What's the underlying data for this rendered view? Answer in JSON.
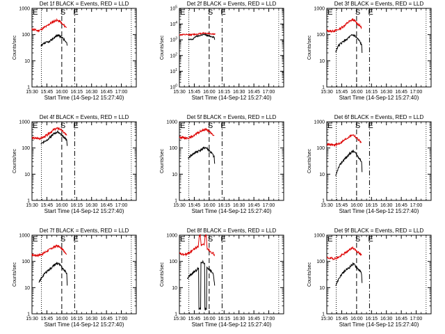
{
  "chart_data": {
    "type": "line",
    "xlabel": "Start Time (14-Sep-12 15:27:40)",
    "ylabel": "Counts/sec",
    "x_tick_labels": [
      "15:30",
      "15:45",
      "16:00",
      "16:15",
      "16:30",
      "16:45",
      "17:00"
    ],
    "x_ticks_min": [
      0,
      15,
      30,
      45,
      60,
      75,
      90
    ],
    "xlim_min": [
      0,
      105
    ],
    "ylim": [
      1,
      1000
    ],
    "y_tick_labels": [
      "1",
      "10",
      "100",
      "1000"
    ],
    "marker_labels": [
      "E",
      "S",
      "E"
    ],
    "series_colors": {
      "events": "#000000",
      "lld": "#dd0000"
    },
    "panels": [
      {
        "title": "Det 1f BLACK = Events, RED = LLD",
        "markers": [
          0.8,
          9.5,
          30.0,
          43.0
        ],
        "events": [
          [
            9,
            35
          ],
          [
            12,
            45
          ],
          [
            15,
            50
          ],
          [
            18,
            55
          ],
          [
            21,
            70
          ],
          [
            24,
            85
          ],
          [
            26,
            95
          ],
          [
            28,
            85
          ],
          [
            30,
            80
          ],
          [
            33,
            60
          ],
          [
            35,
            45
          ],
          [
            35.5,
            38
          ]
        ],
        "lld": [
          [
            0,
            160
          ],
          [
            3,
            150
          ],
          [
            6,
            140
          ],
          [
            9,
            155
          ],
          [
            12,
            185
          ],
          [
            15,
            210
          ],
          [
            18,
            260
          ],
          [
            21,
            300
          ],
          [
            24,
            350
          ],
          [
            26,
            340
          ],
          [
            28,
            320
          ],
          [
            30,
            260
          ],
          [
            33,
            210
          ],
          [
            35,
            190
          ]
        ]
      },
      {
        "title": "Det 2f BLACK = Events, RED = LLD",
        "markers": [
          0.8,
          9.5,
          30.0,
          43.0
        ],
        "ylim": [
          1,
          100000
        ],
        "y_tick_labels": [
          "10^0",
          "10^1",
          "10^2",
          "10^3",
          "10^4",
          "10^5"
        ],
        "events": [
          [
            9,
            1000
          ],
          [
            14,
            1100
          ],
          [
            16,
            1600
          ],
          [
            20,
            1800
          ],
          [
            24,
            2200
          ],
          [
            27,
            2000
          ],
          [
            30,
            1700
          ],
          [
            33,
            1600
          ],
          [
            35,
            1500
          ],
          [
            35.5,
            1000
          ]
        ],
        "lld": [
          [
            0,
            2100
          ],
          [
            8,
            2100
          ],
          [
            10,
            2100
          ],
          [
            15,
            2200
          ],
          [
            20,
            2400
          ],
          [
            24,
            2700
          ],
          [
            27,
            2600
          ],
          [
            30,
            2500
          ],
          [
            35,
            2300
          ],
          [
            36,
            2200
          ]
        ]
      },
      {
        "title": "Det 3f BLACK = Events, RED = LLD",
        "markers": [
          0.8,
          9.5,
          30.0,
          43.0
        ],
        "events": [
          [
            9,
            22
          ],
          [
            11,
            35
          ],
          [
            14,
            45
          ],
          [
            17,
            55
          ],
          [
            20,
            65
          ],
          [
            23,
            80
          ],
          [
            26,
            95
          ],
          [
            28,
            90
          ],
          [
            30,
            75
          ],
          [
            33,
            55
          ],
          [
            35,
            40
          ],
          [
            35.5,
            20
          ]
        ],
        "lld": [
          [
            0,
            140
          ],
          [
            4,
            135
          ],
          [
            8,
            140
          ],
          [
            11,
            150
          ],
          [
            14,
            175
          ],
          [
            17,
            210
          ],
          [
            20,
            260
          ],
          [
            23,
            320
          ],
          [
            26,
            370
          ],
          [
            28,
            340
          ],
          [
            30,
            280
          ],
          [
            33,
            220
          ],
          [
            35,
            190
          ]
        ]
      },
      {
        "title": "Det 4f BLACK = Events, RED = LLD",
        "markers": [
          0.8,
          9.5,
          30.0,
          43.0
        ],
        "events": [
          [
            9,
            150
          ],
          [
            12,
            170
          ],
          [
            15,
            200
          ],
          [
            18,
            260
          ],
          [
            21,
            320
          ],
          [
            24,
            380
          ],
          [
            26,
            420
          ],
          [
            28,
            370
          ],
          [
            30,
            300
          ],
          [
            33,
            240
          ],
          [
            35,
            200
          ],
          [
            35.5,
            120
          ]
        ],
        "lld": [
          [
            0,
            240
          ],
          [
            4,
            230
          ],
          [
            8,
            235
          ],
          [
            11,
            250
          ],
          [
            14,
            290
          ],
          [
            17,
            360
          ],
          [
            20,
            440
          ],
          [
            23,
            520
          ],
          [
            26,
            560
          ],
          [
            28,
            530
          ],
          [
            30,
            460
          ],
          [
            33,
            360
          ],
          [
            35,
            300
          ]
        ]
      },
      {
        "title": "Det 5f BLACK = Events, RED = LLD",
        "markers": [
          0.8,
          9.5,
          30.0,
          43.0
        ],
        "events": [
          [
            9,
            40
          ],
          [
            11,
            50
          ],
          [
            14,
            60
          ],
          [
            17,
            70
          ],
          [
            20,
            80
          ],
          [
            23,
            90
          ],
          [
            26,
            105
          ],
          [
            28,
            95
          ],
          [
            30,
            80
          ],
          [
            33,
            60
          ],
          [
            35,
            45
          ],
          [
            35.5,
            25
          ]
        ],
        "lld": [
          [
            0,
            260
          ],
          [
            4,
            250
          ],
          [
            8,
            240
          ],
          [
            11,
            250
          ],
          [
            14,
            290
          ],
          [
            17,
            340
          ],
          [
            20,
            400
          ],
          [
            23,
            460
          ],
          [
            26,
            520
          ],
          [
            28,
            480
          ],
          [
            30,
            420
          ],
          [
            33,
            340
          ],
          [
            35,
            290
          ]
        ]
      },
      {
        "title": "Det 6f BLACK = Events, RED = LLD",
        "markers": [
          0.8,
          9.5,
          30.0,
          43.0
        ],
        "events": [
          [
            9,
            8
          ],
          [
            11,
            15
          ],
          [
            14,
            25
          ],
          [
            17,
            35
          ],
          [
            20,
            45
          ],
          [
            23,
            60
          ],
          [
            26,
            75
          ],
          [
            28,
            70
          ],
          [
            30,
            55
          ],
          [
            33,
            40
          ],
          [
            35,
            30
          ],
          [
            35.5,
            12
          ]
        ],
        "lld": [
          [
            0,
            140
          ],
          [
            4,
            130
          ],
          [
            8,
            130
          ],
          [
            11,
            140
          ],
          [
            14,
            160
          ],
          [
            17,
            190
          ],
          [
            20,
            230
          ],
          [
            23,
            280
          ],
          [
            26,
            320
          ],
          [
            28,
            290
          ],
          [
            30,
            240
          ],
          [
            33,
            190
          ],
          [
            35,
            160
          ]
        ]
      },
      {
        "title": "Det 7f BLACK = Events, RED = LLD",
        "markers": [
          0.8,
          9.5,
          30.0,
          43.0
        ],
        "events": [
          [
            7,
            15
          ],
          [
            10,
            25
          ],
          [
            13,
            35
          ],
          [
            16,
            45
          ],
          [
            19,
            55
          ],
          [
            22,
            70
          ],
          [
            25,
            85
          ],
          [
            27,
            80
          ],
          [
            30,
            60
          ],
          [
            33,
            45
          ],
          [
            35,
            35
          ],
          [
            35.5,
            12
          ]
        ],
        "lld": [
          [
            0,
            180
          ],
          [
            4,
            170
          ],
          [
            7,
            175
          ],
          [
            10,
            190
          ],
          [
            13,
            220
          ],
          [
            16,
            260
          ],
          [
            19,
            300
          ],
          [
            22,
            350
          ],
          [
            25,
            400
          ],
          [
            27,
            370
          ],
          [
            30,
            300
          ],
          [
            33,
            240
          ],
          [
            35,
            190
          ]
        ]
      },
      {
        "title": "Det 8f BLACK = Events, RED = LLD",
        "markers": [
          0.8,
          9.5,
          30.0,
          43.0
        ],
        "events": [
          [
            8,
            22
          ],
          [
            11,
            30
          ],
          [
            14,
            38
          ],
          [
            17,
            45
          ],
          [
            19,
            55
          ],
          [
            20,
            1.5
          ],
          [
            21,
            1.5
          ],
          [
            22,
            90
          ],
          [
            24,
            95
          ],
          [
            25,
            85
          ],
          [
            26,
            1.5
          ],
          [
            27,
            1.5
          ],
          [
            28,
            60
          ],
          [
            31,
            45
          ],
          [
            34,
            35
          ],
          [
            35.5,
            12
          ]
        ],
        "lld": [
          [
            0,
            200
          ],
          [
            4,
            180
          ],
          [
            8,
            190
          ],
          [
            11,
            230
          ],
          [
            14,
            280
          ],
          [
            17,
            340
          ],
          [
            19,
            360
          ],
          [
            20,
            1000
          ],
          [
            21,
            1000
          ],
          [
            22,
            410
          ],
          [
            24,
            430
          ],
          [
            25,
            400
          ],
          [
            26,
            1000
          ],
          [
            27,
            1000
          ],
          [
            28,
            320
          ],
          [
            31,
            250
          ],
          [
            34,
            200
          ],
          [
            35.5,
            170
          ]
        ]
      },
      {
        "title": "Det 9f BLACK = Events, RED = LLD",
        "markers": [
          0.8,
          9.5,
          30.0,
          43.0
        ],
        "events": [
          [
            9,
            12
          ],
          [
            12,
            22
          ],
          [
            15,
            32
          ],
          [
            18,
            42
          ],
          [
            21,
            52
          ],
          [
            24,
            65
          ],
          [
            26,
            80
          ],
          [
            28,
            75
          ],
          [
            30,
            60
          ],
          [
            33,
            45
          ],
          [
            35,
            35
          ],
          [
            35.5,
            15
          ]
        ],
        "lld": [
          [
            0,
            140
          ],
          [
            4,
            130
          ],
          [
            8,
            130
          ],
          [
            11,
            140
          ],
          [
            14,
            160
          ],
          [
            17,
            190
          ],
          [
            20,
            230
          ],
          [
            23,
            280
          ],
          [
            26,
            330
          ],
          [
            28,
            300
          ],
          [
            30,
            250
          ],
          [
            33,
            200
          ],
          [
            35,
            170
          ]
        ]
      }
    ]
  }
}
